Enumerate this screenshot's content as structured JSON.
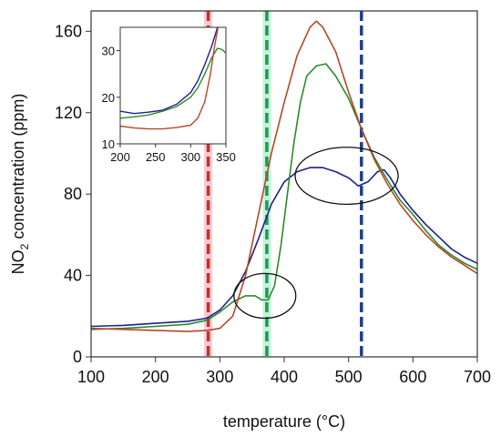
{
  "chart_data": {
    "type": "line",
    "xlabel": "temperature (°C)",
    "ylabel_parts": {
      "main": "NO",
      "sub": "2",
      "rest": " concentration (ppm)"
    },
    "xlim": [
      100,
      700
    ],
    "ylim": [
      0,
      170
    ],
    "xticks": [
      "100",
      "200",
      "300",
      "400",
      "500",
      "600",
      "700"
    ],
    "yticks": [
      "0",
      "40",
      "80",
      "120",
      "160"
    ],
    "grid": false,
    "series": [
      {
        "color": "#1f1f8c",
        "points": [
          [
            100,
            15
          ],
          [
            150,
            15.5
          ],
          [
            200,
            16.5
          ],
          [
            250,
            17.5
          ],
          [
            280,
            19
          ],
          [
            300,
            23
          ],
          [
            320,
            30
          ],
          [
            340,
            42
          ],
          [
            360,
            58
          ],
          [
            380,
            75
          ],
          [
            400,
            86
          ],
          [
            420,
            91
          ],
          [
            440,
            93
          ],
          [
            460,
            93
          ],
          [
            480,
            91
          ],
          [
            500,
            88
          ],
          [
            515,
            84
          ],
          [
            530,
            86
          ],
          [
            545,
            91
          ],
          [
            555,
            92
          ],
          [
            565,
            88
          ],
          [
            580,
            80
          ],
          [
            600,
            72
          ],
          [
            620,
            65
          ],
          [
            640,
            59
          ],
          [
            660,
            53
          ],
          [
            680,
            49
          ],
          [
            700,
            46
          ]
        ]
      },
      {
        "color": "#2b8a2b",
        "points": [
          [
            100,
            13.5
          ],
          [
            150,
            14
          ],
          [
            200,
            15
          ],
          [
            250,
            16
          ],
          [
            280,
            18
          ],
          [
            300,
            22
          ],
          [
            320,
            27
          ],
          [
            340,
            30
          ],
          [
            355,
            30
          ],
          [
            365,
            28
          ],
          [
            375,
            28
          ],
          [
            385,
            35
          ],
          [
            395,
            55
          ],
          [
            405,
            80
          ],
          [
            415,
            105
          ],
          [
            425,
            125
          ],
          [
            435,
            138
          ],
          [
            450,
            143
          ],
          [
            465,
            144
          ],
          [
            480,
            138
          ],
          [
            500,
            127
          ],
          [
            520,
            112
          ],
          [
            540,
            98
          ],
          [
            560,
            87
          ],
          [
            580,
            77
          ],
          [
            600,
            70
          ],
          [
            620,
            62
          ],
          [
            640,
            55
          ],
          [
            660,
            50
          ],
          [
            680,
            46
          ],
          [
            700,
            43
          ]
        ]
      },
      {
        "color": "#b5472a",
        "points": [
          [
            100,
            14
          ],
          [
            150,
            13.5
          ],
          [
            200,
            13
          ],
          [
            250,
            12.5
          ],
          [
            280,
            13
          ],
          [
            300,
            14
          ],
          [
            320,
            20
          ],
          [
            340,
            40
          ],
          [
            360,
            70
          ],
          [
            380,
            100
          ],
          [
            400,
            125
          ],
          [
            420,
            148
          ],
          [
            440,
            162
          ],
          [
            450,
            165
          ],
          [
            460,
            162
          ],
          [
            480,
            150
          ],
          [
            500,
            130
          ],
          [
            520,
            112
          ],
          [
            540,
            97
          ],
          [
            560,
            85
          ],
          [
            580,
            75
          ],
          [
            600,
            67
          ],
          [
            620,
            60
          ],
          [
            640,
            54
          ],
          [
            660,
            49
          ],
          [
            680,
            45
          ],
          [
            700,
            41
          ]
        ]
      }
    ],
    "vlines": [
      {
        "x": 282,
        "color": "#c0322a",
        "glow": "#f4b3c0"
      },
      {
        "x": 373,
        "color": "#1f9a4a",
        "glow": "#a8eccf"
      },
      {
        "x": 520,
        "color": "#1e3f8e",
        "glow": null
      }
    ],
    "ellipses": [
      {
        "cx": 370,
        "cy": 30,
        "rx": 48,
        "ry": 11
      },
      {
        "cx": 497,
        "cy": 89,
        "rx": 80,
        "ry": 14
      }
    ],
    "inset": {
      "xlim": [
        200,
        350
      ],
      "ylim": [
        10,
        35
      ],
      "xticks": [
        "200",
        "250",
        "300",
        "350"
      ],
      "yticks": [
        "10",
        "20",
        "30"
      ],
      "series": [
        {
          "color": "#1f1f8c",
          "points": [
            [
              200,
              17
            ],
            [
              220,
              16.5
            ],
            [
              240,
              16.8
            ],
            [
              260,
              17.2
            ],
            [
              280,
              18.5
            ],
            [
              300,
              21
            ],
            [
              310,
              23.5
            ],
            [
              320,
              27
            ],
            [
              330,
              31
            ],
            [
              340,
              36
            ]
          ]
        },
        {
          "color": "#2b8a2b",
          "points": [
            [
              200,
              15.5
            ],
            [
              220,
              15.8
            ],
            [
              240,
              16.2
            ],
            [
              260,
              17
            ],
            [
              280,
              18
            ],
            [
              300,
              20
            ],
            [
              310,
              22
            ],
            [
              320,
              25
            ],
            [
              330,
              28.5
            ],
            [
              338,
              30.5
            ],
            [
              345,
              30.2
            ],
            [
              350,
              29.5
            ]
          ]
        },
        {
          "color": "#b5472a",
          "points": [
            [
              200,
              13.8
            ],
            [
              220,
              13.4
            ],
            [
              240,
              13.2
            ],
            [
              260,
              13.2
            ],
            [
              280,
              13.5
            ],
            [
              300,
              14
            ],
            [
              310,
              15.5
            ],
            [
              320,
              19
            ],
            [
              328,
              25
            ],
            [
              334,
              31
            ],
            [
              340,
              36
            ]
          ]
        }
      ]
    }
  }
}
